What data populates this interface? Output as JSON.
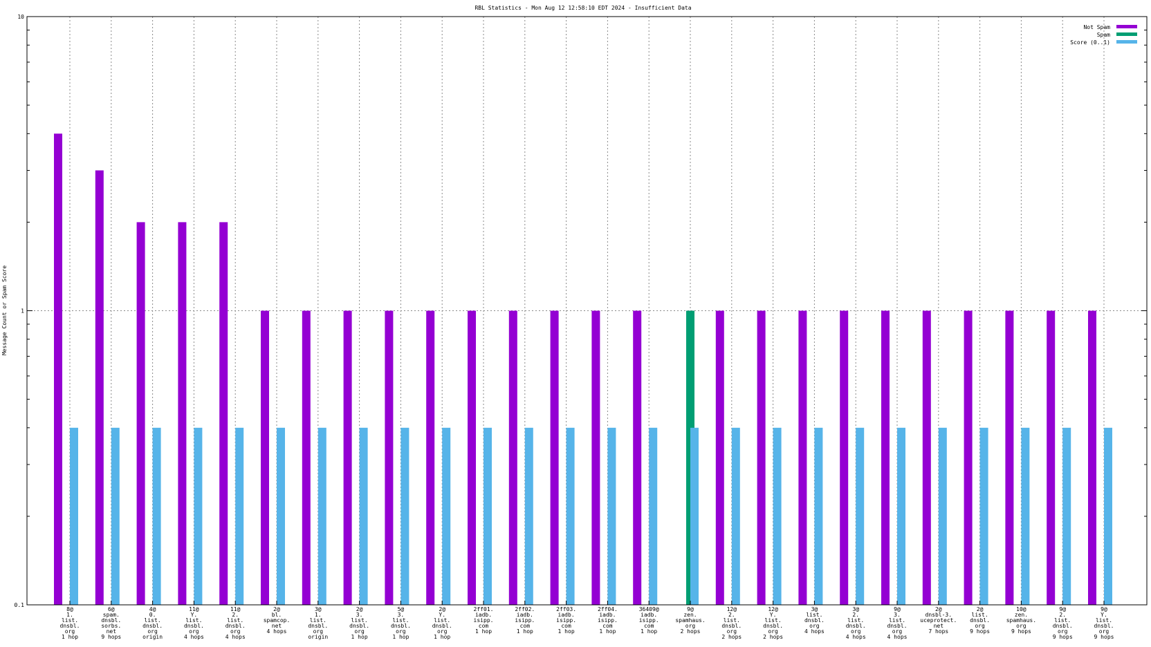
{
  "chart_data": {
    "type": "bar",
    "title": "RBL Statistics - Mon Aug 12 12:58:10 EDT 2024 - Insufficient Data",
    "xlabel": "",
    "ylabel": "Message Count or Spam Score",
    "yscale": "log",
    "ylim": [
      0.1,
      10
    ],
    "yticks": [
      "10",
      "1",
      "0.1"
    ],
    "grid": true,
    "legend_position": "top-right",
    "categories": [
      "8@\n1.\nlist.\ndnsbl.\norg\n1 hop",
      "6@\nspam.\ndnsbl.\nsorbs.\nnet\n9 hops",
      "4@\n0.\nlist.\ndnsbl.\norg\norigin",
      "11@\nY.\nlist.\ndnsbl.\norg\n4 hops",
      "11@\n2.\nlist.\ndnsbl.\norg\n4 hops",
      "2@\nbl.\nspamcop.\nnet\n4 hops",
      "3@\n1.\nlist.\ndnsbl.\norg\norigin",
      "2@\n3.\nlist.\ndnsbl.\norg\n1 hop",
      "5@\n3.\nlist.\ndnsbl.\norg\n1 hop",
      "2@\nY.\nlist.\ndnsbl.\norg\n1 hop",
      "2ff01.\niadb.\nisipp.\ncom\n1 hop",
      "2ff02.\niadb.\nisipp.\ncom\n1 hop",
      "2ff03.\niadb.\nisipp.\ncom\n1 hop",
      "2ff04.\niadb.\nisipp.\ncom\n1 hop",
      "36409@\niadb.\nisipp.\ncom\n1 hop",
      "9@\nzen.\nspamhaus.\norg\n2 hops",
      "12@\n2.\nlist.\ndnsbl.\norg\n2 hops",
      "12@\nY.\nlist.\ndnsbl.\norg\n2 hops",
      "3@\nlist.\ndnsbl.\norg\n4 hops",
      "3@\n2.\nlist.\ndnsbl.\norg\n4 hops",
      "9@\n3.\nlist.\ndnsbl.\norg\n4 hops",
      "2@\ndnsbl-3.\nuceprotect.\nnet\n7 hops",
      "2@\nlist.\ndnsbl.\norg\n9 hops",
      "10@\nzen.\nspamhaus.\norg\n9 hops",
      "9@\n2.\nlist.\ndnsbl.\norg\n9 hops",
      "9@\nY.\nlist.\ndnsbl.\norg\n9 hops"
    ],
    "series": [
      {
        "name": "Not Spam",
        "color": "#9400d3",
        "values": [
          4,
          3,
          2,
          2,
          2,
          1,
          1,
          1,
          1,
          1,
          1,
          1,
          1,
          1,
          1,
          0,
          1,
          1,
          1,
          1,
          1,
          1,
          1,
          1,
          1,
          1
        ]
      },
      {
        "name": "Spam",
        "color": "#009e73",
        "values": [
          0,
          0,
          0,
          0,
          0,
          0,
          0,
          0,
          0,
          0,
          0,
          0,
          0,
          0,
          0,
          1,
          0,
          0,
          0,
          0,
          0,
          0,
          0,
          0,
          0,
          0
        ]
      },
      {
        "name": "Score (0..1)",
        "color": "#56b4e9",
        "values": [
          0.4,
          0.4,
          0.4,
          0.4,
          0.4,
          0.4,
          0.4,
          0.4,
          0.4,
          0.4,
          0.4,
          0.4,
          0.4,
          0.4,
          0.4,
          0.4,
          0.4,
          0.4,
          0.4,
          0.4,
          0.4,
          0.4,
          0.4,
          0.4,
          0.4,
          0.4
        ]
      }
    ]
  }
}
